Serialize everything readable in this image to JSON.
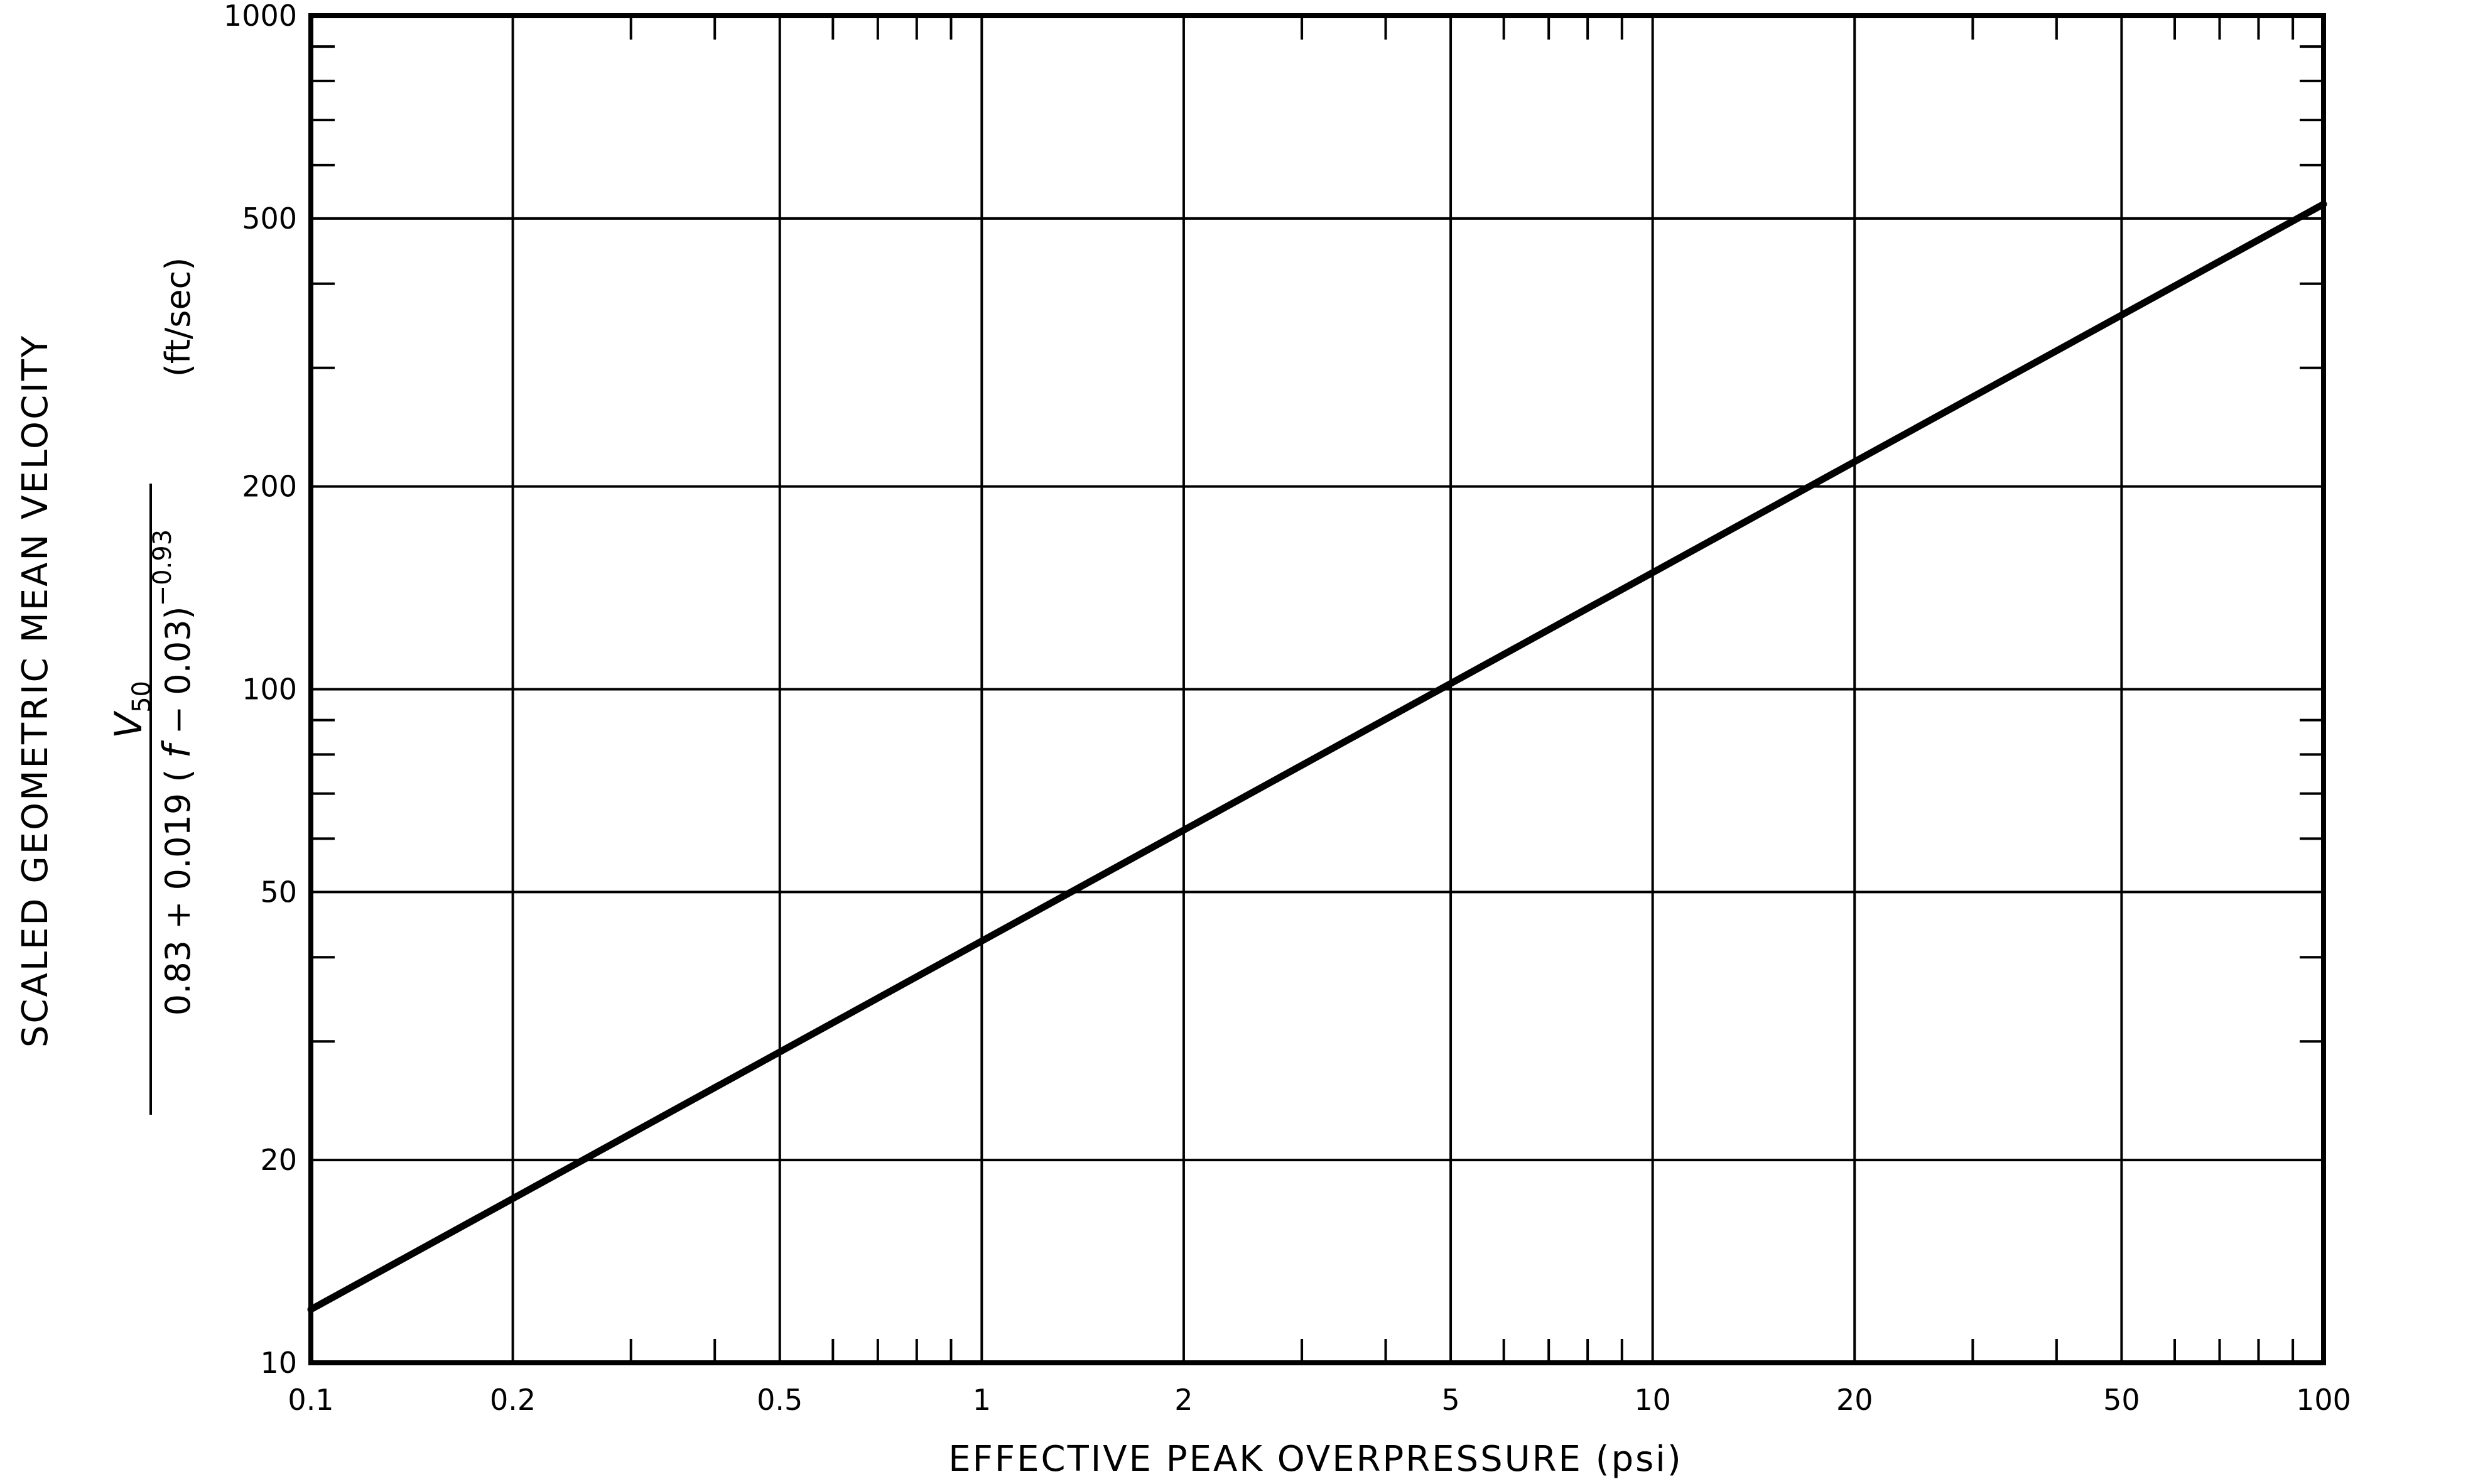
{
  "chart_data": {
    "type": "line",
    "title": "",
    "xlabel": "EFFECTIVE PEAK OVERPRESSURE (psi)",
    "ylabel": "SCALED GEOMETRIC MEAN VELOCITY",
    "ylabel_formula": {
      "numerator_symbol": "V",
      "numerator_subscript": "50",
      "denominator_base": "0.83 + 0.019 ( ",
      "denominator_var": "f",
      "denominator_tail": " − 0.03)",
      "denominator_exponent": "−0.93",
      "units": "(ft/sec)"
    },
    "x_scale": "log",
    "y_scale": "log",
    "xlim": [
      0.1,
      100
    ],
    "ylim": [
      10,
      1000
    ],
    "grid": true,
    "x_ticks": [
      {
        "value": 0.1,
        "label": "0.1"
      },
      {
        "value": 0.2,
        "label": "0.2"
      },
      {
        "value": 0.5,
        "label": "0.5"
      },
      {
        "value": 1,
        "label": "1"
      },
      {
        "value": 2,
        "label": "2"
      },
      {
        "value": 5,
        "label": "5"
      },
      {
        "value": 10,
        "label": "10"
      },
      {
        "value": 20,
        "label": "20"
      },
      {
        "value": 50,
        "label": "50"
      },
      {
        "value": 100,
        "label": "100"
      }
    ],
    "y_ticks": [
      {
        "value": 10,
        "label": "10"
      },
      {
        "value": 20,
        "label": "20"
      },
      {
        "value": 50,
        "label": "50"
      },
      {
        "value": 100,
        "label": "100"
      },
      {
        "value": 200,
        "label": "200"
      },
      {
        "value": 500,
        "label": "500"
      },
      {
        "value": 1000,
        "label": "1000"
      }
    ],
    "series": [
      {
        "x": [
          0.1,
          100
        ],
        "y": [
          12,
          525
        ]
      }
    ]
  }
}
